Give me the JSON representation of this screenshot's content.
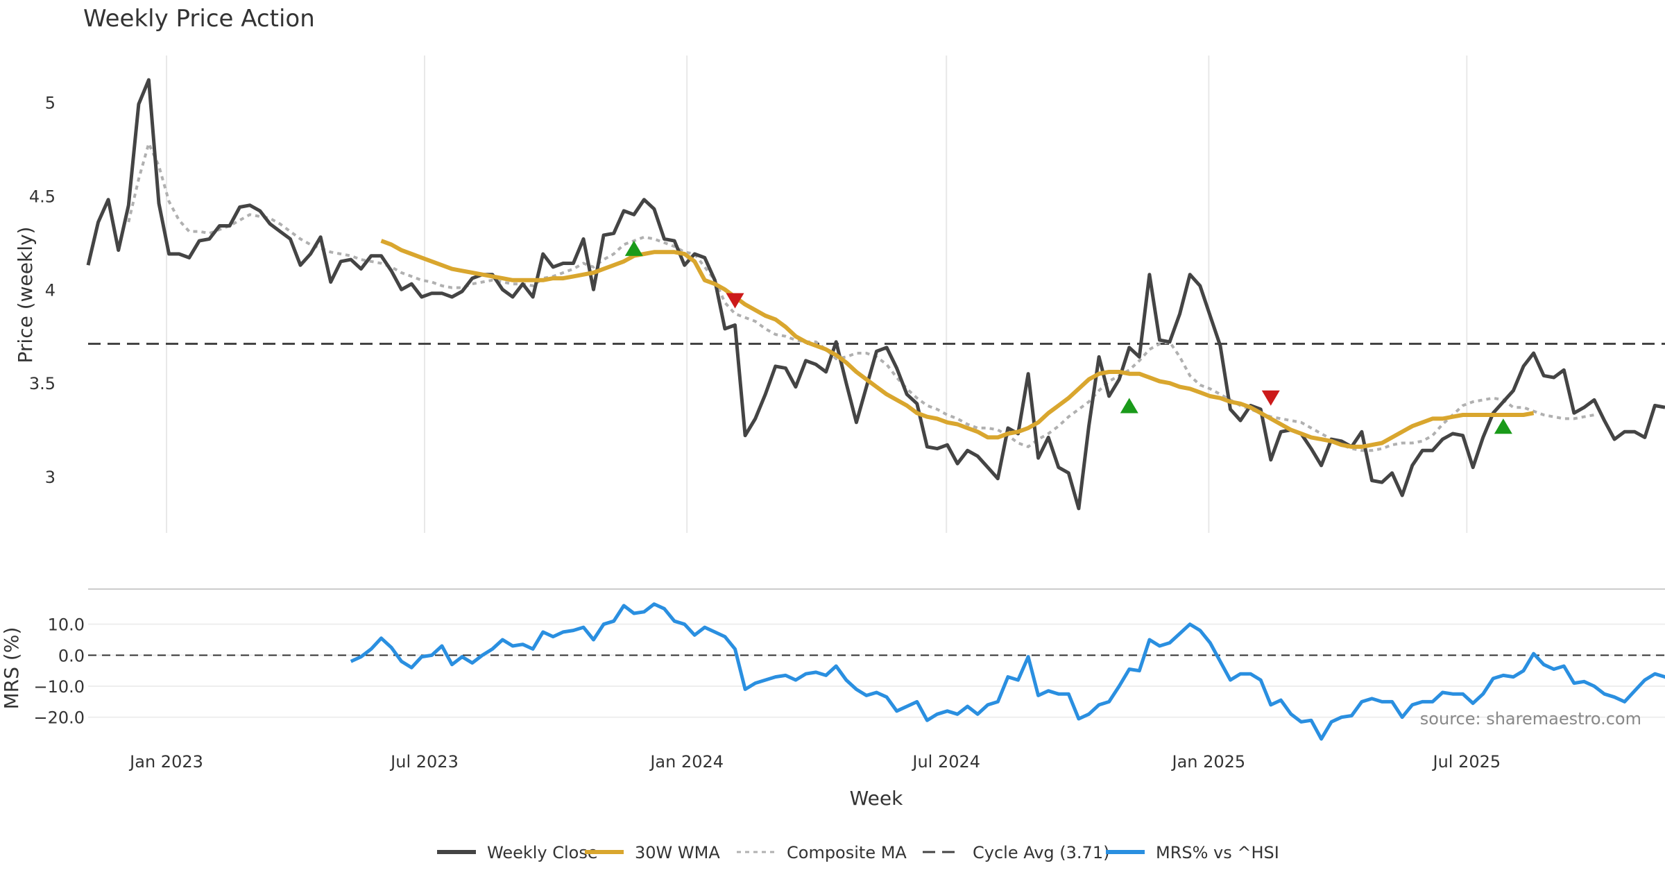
{
  "chart_data": {
    "type": "line",
    "title": "Weekly Price Action",
    "xlabel": "Week",
    "x_ticks": [
      "Jan 2023",
      "Jul 2023",
      "Jan 2024",
      "Jul 2024",
      "Jan 2025",
      "Jul 2025"
    ],
    "start_date": "2022-11-07",
    "end_date": "2025-11-17",
    "price_panel": {
      "ylabel": "Price (weekly)",
      "yticks": [
        "3",
        "3.5",
        "4",
        "4.5",
        "5"
      ],
      "ylim": [
        2.7,
        5.25
      ],
      "cycle_avg": 3.71,
      "weekly_close": [
        4.13,
        4.36,
        4.48,
        4.21,
        4.45,
        4.99,
        5.12,
        4.46,
        4.19,
        4.19,
        4.17,
        4.26,
        4.27,
        4.34,
        4.34,
        4.44,
        4.45,
        4.42,
        4.35,
        4.31,
        4.27,
        4.13,
        4.19,
        4.28,
        4.04,
        4.15,
        4.16,
        4.11,
        4.18,
        4.18,
        4.1,
        4.0,
        4.03,
        3.96,
        3.98,
        3.98,
        3.96,
        3.99,
        4.06,
        4.08,
        4.08,
        4.0,
        3.96,
        4.03,
        3.96,
        4.19,
        4.12,
        4.14,
        4.14,
        4.27,
        4.0,
        4.29,
        4.3,
        4.42,
        4.4,
        4.48,
        4.43,
        4.27,
        4.26,
        4.13,
        4.19,
        4.17,
        4.05,
        3.79,
        3.81,
        3.22,
        3.31,
        3.44,
        3.59,
        3.58,
        3.48,
        3.62,
        3.6,
        3.56,
        3.72,
        3.5,
        3.29,
        3.48,
        3.67,
        3.69,
        3.58,
        3.44,
        3.39,
        3.16,
        3.15,
        3.17,
        3.07,
        3.14,
        3.11,
        3.05,
        2.99,
        3.26,
        3.23,
        3.55,
        3.1,
        3.21,
        3.05,
        3.02,
        2.83,
        3.27,
        3.64,
        3.43,
        3.52,
        3.69,
        3.64,
        4.08,
        3.73,
        3.72,
        3.87,
        4.08,
        4.02,
        3.86,
        3.7,
        3.36,
        3.3,
        3.38,
        3.36,
        3.09,
        3.24,
        3.25,
        3.23,
        3.15,
        3.06,
        3.2,
        3.19,
        3.16,
        3.24,
        2.98,
        2.97,
        3.02,
        2.9,
        3.06,
        3.14,
        3.14,
        3.2,
        3.23,
        3.22,
        3.05,
        3.21,
        3.34,
        3.4,
        3.46,
        3.59,
        3.66,
        3.54,
        3.53,
        3.57,
        3.34,
        3.37,
        3.41,
        3.3,
        3.2,
        3.24,
        3.24,
        3.21,
        3.38,
        3.37
      ],
      "wma_30w": [
        null,
        null,
        null,
        null,
        null,
        null,
        null,
        null,
        null,
        null,
        null,
        null,
        null,
        null,
        null,
        null,
        null,
        null,
        null,
        null,
        null,
        null,
        null,
        null,
        null,
        null,
        null,
        null,
        null,
        4.26,
        4.24,
        4.21,
        4.19,
        4.17,
        4.15,
        4.13,
        4.11,
        4.1,
        4.09,
        4.08,
        4.07,
        4.06,
        4.05,
        4.05,
        4.05,
        4.05,
        4.06,
        4.06,
        4.07,
        4.08,
        4.09,
        4.11,
        4.13,
        4.15,
        4.18,
        4.19,
        4.2,
        4.2,
        4.2,
        4.19,
        4.15,
        4.05,
        4.03,
        4.0,
        3.96,
        3.92,
        3.89,
        3.86,
        3.84,
        3.8,
        3.75,
        3.72,
        3.7,
        3.68,
        3.65,
        3.61,
        3.56,
        3.52,
        3.48,
        3.44,
        3.41,
        3.38,
        3.34,
        3.32,
        3.31,
        3.29,
        3.28,
        3.26,
        3.24,
        3.21,
        3.21,
        3.23,
        3.24,
        3.26,
        3.29,
        3.34,
        3.38,
        3.42,
        3.47,
        3.52,
        3.55,
        3.56,
        3.56,
        3.55,
        3.55,
        3.53,
        3.51,
        3.5,
        3.48,
        3.47,
        3.45,
        3.43,
        3.42,
        3.4,
        3.39,
        3.37,
        3.34,
        3.31,
        3.28,
        3.25,
        3.23,
        3.21,
        3.2,
        3.19,
        3.17,
        3.16,
        3.16,
        3.17,
        3.18,
        3.21,
        3.24,
        3.27,
        3.29,
        3.31,
        3.31,
        3.32,
        3.33,
        3.33,
        3.33,
        3.33,
        3.33,
        3.33,
        3.33,
        3.34
      ],
      "composite_ma": [
        null,
        null,
        null,
        null,
        4.36,
        4.59,
        4.78,
        4.66,
        4.47,
        4.37,
        4.31,
        4.31,
        4.3,
        4.32,
        4.34,
        4.37,
        4.4,
        4.39,
        4.38,
        4.35,
        4.31,
        4.27,
        4.24,
        4.22,
        4.2,
        4.19,
        4.18,
        4.16,
        4.15,
        4.14,
        4.12,
        4.09,
        4.07,
        4.05,
        4.04,
        4.02,
        4.01,
        4.01,
        4.03,
        4.04,
        4.05,
        4.04,
        4.03,
        4.03,
        4.02,
        4.06,
        4.07,
        4.09,
        4.11,
        4.14,
        4.12,
        4.16,
        4.19,
        4.24,
        4.26,
        4.28,
        4.27,
        4.25,
        4.23,
        4.2,
        4.19,
        4.12,
        4.05,
        3.93,
        3.87,
        3.85,
        3.83,
        3.79,
        3.76,
        3.75,
        3.73,
        3.72,
        3.72,
        3.68,
        3.63,
        3.64,
        3.66,
        3.66,
        3.64,
        3.6,
        3.53,
        3.47,
        3.42,
        3.38,
        3.36,
        3.33,
        3.31,
        3.28,
        3.26,
        3.26,
        3.25,
        3.22,
        3.18,
        3.16,
        3.2,
        3.23,
        3.27,
        3.32,
        3.36,
        3.4,
        3.46,
        3.51,
        3.54,
        3.57,
        3.62,
        3.68,
        3.71,
        3.72,
        3.64,
        3.54,
        3.49,
        3.47,
        3.44,
        3.41,
        3.38,
        3.36,
        3.34,
        3.32,
        3.31,
        3.3,
        3.29,
        3.26,
        3.23,
        3.2,
        3.17,
        3.15,
        3.14,
        3.14,
        3.15,
        3.17,
        3.18,
        3.18,
        3.19,
        3.22,
        3.28,
        3.33,
        3.38,
        3.4,
        3.41,
        3.42,
        3.41,
        3.37,
        3.37,
        3.35,
        3.33,
        3.32,
        3.31,
        3.31,
        3.32,
        3.33
      ],
      "buy_signals": [
        {
          "week": 54,
          "price": 4.22
        },
        {
          "week": 103,
          "price": 3.38
        },
        {
          "week": 140,
          "price": 3.27
        }
      ],
      "sell_signals": [
        {
          "week": 64,
          "price": 3.94
        },
        {
          "week": 117,
          "price": 3.42
        }
      ]
    },
    "mrs_panel": {
      "ylabel": "MRS (%)",
      "yticks": [
        "−20.0",
        "−10.0",
        "0.0",
        "10.0"
      ],
      "ylim": [
        -27,
        20
      ],
      "zero_line": 0,
      "mrs_start_week": 26,
      "mrs_values": [
        -2,
        -0.5,
        2,
        5.5,
        2.5,
        -2,
        -4,
        -0.5,
        0,
        3,
        -3,
        -0.5,
        -2.5,
        0,
        2,
        5,
        3,
        3.5,
        2,
        7.5,
        6,
        7.5,
        8,
        9,
        5,
        10,
        11,
        16,
        13.5,
        14,
        16.5,
        15,
        11,
        10,
        6.5,
        9,
        7.5,
        6,
        2,
        -11,
        -9,
        -8,
        -7,
        -6.5,
        -8,
        -6,
        -5.5,
        -6.5,
        -3.5,
        -8,
        -11,
        -13,
        -12,
        -13.5,
        -18,
        -16.5,
        -15,
        -21,
        -19,
        -18,
        -19,
        -16.5,
        -19,
        -16,
        -15,
        -7,
        -8,
        -0.5,
        -13,
        -11.5,
        -12.5,
        -12.5,
        -20.5,
        -19,
        -16,
        -15,
        -10,
        -4.5,
        -5,
        5,
        3,
        4,
        7,
        10,
        8,
        4,
        -2,
        -8,
        -6,
        -6,
        -8,
        -16,
        -14.5,
        -19,
        -21.5,
        -21,
        -27,
        -21.5,
        -20,
        -19.5,
        -15,
        -14,
        -15,
        -15,
        -20,
        -16,
        -15,
        -15,
        -12,
        -12.5,
        -12.5,
        -15.5,
        -12.5,
        -7.5,
        -6.5,
        -7,
        -5,
        0.5,
        -3,
        -4.5,
        -3.5,
        -9,
        -8.5,
        -10,
        -12.5,
        -13.5,
        -15,
        -11.5,
        -8,
        -6,
        -7,
        -9
      ]
    },
    "source_note": "source: sharemaestro.com",
    "legend": [
      {
        "label": "Weekly Close",
        "color": "#444444",
        "style": "solid"
      },
      {
        "label": "30W WMA",
        "color": "#d9a62e",
        "style": "solid"
      },
      {
        "label": "Composite MA",
        "color": "#b0b0b0",
        "style": "dotted"
      },
      {
        "label": "Cycle Avg (3.71)",
        "color": "#444444",
        "style": "dashed"
      },
      {
        "label": "MRS% vs ^HSI",
        "color": "#2a8fe0",
        "style": "solid"
      }
    ],
    "colors": {
      "close": "#444444",
      "wma": "#d9a62e",
      "composite": "#b0b0b0",
      "mrs": "#2a8fe0",
      "buy": "#1a9a1a",
      "sell": "#cc1a1a",
      "grid": "#e8e8e8"
    }
  }
}
